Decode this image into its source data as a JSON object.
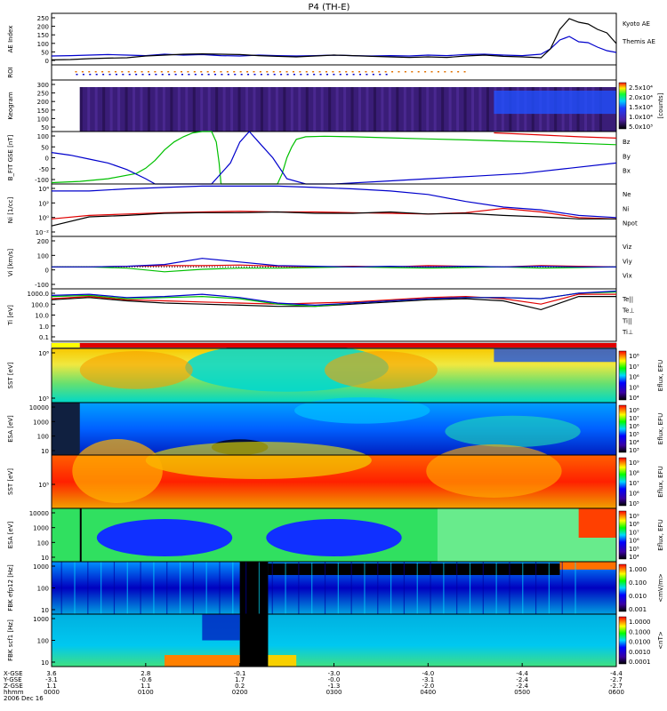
{
  "title": "P4 (TH-E)",
  "colors": {
    "blue": "#0000cc",
    "black": "#000000",
    "red": "#e00000",
    "green": "#00c000",
    "orange": "#e07000"
  },
  "chart_data": [
    {
      "id": "ae",
      "type": "line",
      "ylabel": "AE Index",
      "yticks": [
        "250",
        "200",
        "150",
        "100",
        "50",
        "0"
      ],
      "ylim": [
        -30,
        260
      ],
      "series": [
        {
          "name": "Kyoto AE",
          "color": "blue",
          "x": [
            0,
            20,
            40,
            60,
            80,
            100,
            120,
            140,
            160,
            180,
            200,
            220,
            240,
            260,
            280,
            300,
            320,
            340,
            360,
            380,
            400,
            420,
            440,
            460,
            480,
            500,
            520,
            530,
            540,
            550,
            560,
            570,
            580,
            590,
            600
          ],
          "y": [
            20,
            22,
            25,
            28,
            25,
            22,
            30,
            25,
            28,
            22,
            20,
            25,
            22,
            20,
            22,
            25,
            22,
            20,
            22,
            20,
            25,
            22,
            28,
            30,
            25,
            22,
            30,
            60,
            110,
            130,
            100,
            95,
            70,
            50,
            40
          ]
        },
        {
          "name": "Themis AE",
          "color": "black",
          "x": [
            0,
            20,
            40,
            60,
            80,
            100,
            120,
            140,
            160,
            180,
            200,
            220,
            240,
            260,
            280,
            300,
            320,
            340,
            360,
            380,
            400,
            420,
            440,
            460,
            480,
            500,
            520,
            530,
            540,
            550,
            560,
            570,
            580,
            590,
            600
          ],
          "y": [
            -2,
            0,
            5,
            8,
            10,
            20,
            25,
            30,
            32,
            30,
            28,
            22,
            18,
            15,
            20,
            25,
            22,
            18,
            15,
            12,
            15,
            12,
            20,
            25,
            18,
            15,
            10,
            60,
            170,
            230,
            210,
            200,
            170,
            150,
            90
          ]
        }
      ]
    },
    {
      "id": "roi",
      "type": "scatter",
      "ylabel": "ROI",
      "yticks": []
    },
    {
      "id": "keogram",
      "type": "heatmap",
      "ylabel": "Keogram",
      "yticks": [
        "300",
        "250",
        "200",
        "150",
        "100",
        "50"
      ],
      "colorbar_ticks": [
        "2.5x10⁴",
        "2.0x10⁴",
        "1.5x10⁴",
        "1.0x10⁴",
        "5.0x10³"
      ],
      "colorbar_label": "[counts]"
    },
    {
      "id": "bfield",
      "type": "line",
      "ylabel": "B_FIT GSE [nT]",
      "yticks": [
        "100",
        "50",
        "0",
        "-50",
        "-100"
      ],
      "ylim": [
        -100,
        100
      ],
      "series": [
        {
          "name": "Bz",
          "color": "red",
          "x": [
            470,
            500,
            530,
            560,
            600
          ],
          "y": [
            95,
            90,
            85,
            80,
            75
          ]
        },
        {
          "name": "By",
          "color": "green",
          "x": [
            0,
            30,
            60,
            90,
            100,
            110,
            120,
            130,
            140,
            150,
            160,
            170,
            175,
            178,
            180,
            200,
            220,
            240,
            245,
            250,
            255,
            260,
            270,
            290,
            320,
            360,
            400,
            440,
            480,
            520,
            560,
            600
          ],
          "y": [
            -95,
            -90,
            -80,
            -60,
            -40,
            -10,
            30,
            60,
            80,
            95,
            100,
            100,
            60,
            -20,
            -100,
            -100,
            -100,
            -100,
            -60,
            0,
            40,
            70,
            80,
            82,
            80,
            76,
            72,
            68,
            64,
            60,
            55,
            50
          ]
        },
        {
          "name": "Bx",
          "color": "blue",
          "x": [
            0,
            20,
            40,
            60,
            80,
            100,
            110,
            140,
            170,
            190,
            200,
            210,
            220,
            235,
            250,
            270,
            300,
            350,
            400,
            450,
            500,
            550,
            600
          ],
          "y": [
            20,
            10,
            -5,
            -20,
            -45,
            -80,
            -100,
            -100,
            -100,
            -20,
            60,
            100,
            60,
            0,
            -80,
            -100,
            -100,
            -90,
            -80,
            -70,
            -60,
            -40,
            -20
          ]
        }
      ]
    },
    {
      "id": "density",
      "type": "line",
      "ylabel": "Ni [1/cc]",
      "yticks": [
        "10⁴",
        "10²",
        "10⁰",
        "10⁻²"
      ],
      "ylim": [
        -3,
        4.5
      ],
      "series": [
        {
          "name": "Ne",
          "color": "red",
          "x": [
            0,
            40,
            80,
            120,
            160,
            200,
            240,
            280,
            320,
            360,
            400,
            440,
            480,
            520,
            560,
            600
          ],
          "y": [
            -0.5,
            0,
            0.2,
            0.4,
            0.5,
            0.6,
            0.5,
            0.5,
            0.4,
            0.3,
            0.2,
            0.4,
            1,
            0.5,
            -0.3,
            -0.5
          ]
        },
        {
          "name": "Ni",
          "color": "black",
          "x": [
            0,
            40,
            80,
            120,
            160,
            200,
            240,
            280,
            320,
            360,
            400,
            440,
            480,
            520,
            560,
            600
          ],
          "y": [
            -1.5,
            -0.2,
            0,
            0.3,
            0.4,
            0.4,
            0.5,
            0.3,
            0.3,
            0.5,
            0.2,
            0.3,
            0,
            -0.2,
            -0.5,
            -0.5
          ]
        },
        {
          "name": "Npot",
          "color": "blue",
          "x": [
            0,
            40,
            80,
            120,
            160,
            200,
            240,
            280,
            320,
            360,
            400,
            440,
            480,
            520,
            560,
            600
          ],
          "y": [
            3.5,
            3.5,
            3.8,
            4,
            4.2,
            4.2,
            4.2,
            4,
            3.8,
            3.5,
            3,
            2,
            1.2,
            0.8,
            0,
            -0.3
          ]
        }
      ]
    },
    {
      "id": "velocity",
      "type": "line",
      "ylabel": "Vi [km/s]",
      "yticks": [
        "200",
        "100",
        "0",
        "-100"
      ],
      "ylim": [
        -180,
        250
      ],
      "series": [
        {
          "name": "Viz",
          "color": "red",
          "x": [
            0,
            40,
            80,
            120,
            160,
            200,
            240,
            280,
            320,
            360,
            400,
            440,
            480,
            520,
            560,
            600
          ],
          "y": [
            0,
            0,
            5,
            10,
            10,
            15,
            5,
            0,
            5,
            0,
            10,
            5,
            0,
            10,
            5,
            0
          ]
        },
        {
          "name": "Viy",
          "color": "green",
          "x": [
            0,
            40,
            80,
            120,
            160,
            200,
            240,
            280,
            320,
            360,
            400,
            440,
            480,
            520,
            560,
            600
          ],
          "y": [
            0,
            0,
            -10,
            -40,
            -20,
            -10,
            -10,
            -5,
            0,
            -5,
            -10,
            -5,
            0,
            -10,
            -5,
            0
          ]
        },
        {
          "name": "Vix",
          "color": "blue",
          "x": [
            0,
            40,
            80,
            120,
            160,
            200,
            240,
            280,
            320,
            360,
            400,
            440,
            480,
            520,
            560,
            600
          ],
          "y": [
            0,
            0,
            5,
            20,
            70,
            40,
            10,
            5,
            0,
            5,
            0,
            5,
            0,
            5,
            0,
            0
          ]
        }
      ]
    },
    {
      "id": "temperature",
      "type": "line",
      "ylabel": "Ti [eV]",
      "yticks": [
        "1000.0",
        "100.0",
        "10.0",
        "1.0",
        "0.1"
      ],
      "ylim": [
        -1.2,
        3.6
      ],
      "series": [
        {
          "name": "Te||",
          "color": "black",
          "x": [
            0,
            40,
            80,
            120,
            160,
            200,
            240,
            280,
            320,
            360,
            400,
            440,
            480,
            520,
            560,
            600
          ],
          "y": [
            2.6,
            2.8,
            2.5,
            2.3,
            2.2,
            2.1,
            2.0,
            2.0,
            2.2,
            2.4,
            2.6,
            2.7,
            2.5,
            1.7,
            2.9,
            2.9
          ]
        },
        {
          "name": "Te⊥",
          "color": "red",
          "x": [
            0,
            40,
            80,
            120,
            160,
            200,
            240,
            280,
            320,
            360,
            400,
            440,
            480,
            520,
            560,
            600
          ],
          "y": [
            2.7,
            2.9,
            2.6,
            2.5,
            2.4,
            2.3,
            2.2,
            2.3,
            2.4,
            2.6,
            2.8,
            2.9,
            2.7,
            2.2,
            3.1,
            3.1
          ]
        },
        {
          "name": "Ti||",
          "color": "green",
          "x": [
            0,
            40,
            80,
            120,
            160,
            200,
            240,
            280,
            320,
            360,
            400,
            440,
            480,
            520,
            560,
            600
          ],
          "y": [
            2.9,
            3.0,
            2.7,
            2.8,
            2.9,
            2.7,
            2.2,
            2.0,
            2.3,
            2.5,
            2.7,
            2.8,
            2.8,
            2.7,
            3.2,
            3.3
          ]
        },
        {
          "name": "Ti⊥",
          "color": "blue",
          "x": [
            0,
            40,
            80,
            120,
            160,
            200,
            240,
            280,
            320,
            360,
            400,
            440,
            480,
            520,
            560,
            600
          ],
          "y": [
            3.0,
            3.1,
            2.8,
            2.9,
            3.1,
            2.8,
            2.3,
            2.1,
            2.3,
            2.5,
            2.7,
            2.8,
            2.8,
            2.7,
            3.2,
            3.4
          ]
        }
      ]
    },
    {
      "id": "sst-ion",
      "type": "heatmap",
      "ylabel": "SST [eV]",
      "yticks": [
        "10⁶",
        "10⁵"
      ],
      "colorbar_ticks": [
        "10⁸",
        "10⁷",
        "10⁶",
        "10⁵",
        "10⁴"
      ],
      "colorbar_label": "Eflux, EFU"
    },
    {
      "id": "esa-ion",
      "type": "heatmap",
      "ylabel": "ESA [eV]",
      "yticks": [
        "10000",
        "1000",
        "100",
        "10"
      ],
      "colorbar_ticks": [
        "10⁸",
        "10⁷",
        "10⁶",
        "10⁵",
        "10⁴",
        "10³"
      ],
      "colorbar_label": "Eflux, EFU"
    },
    {
      "id": "sst-electron",
      "type": "heatmap",
      "ylabel": "SST [eV]",
      "yticks": [
        "10⁵"
      ],
      "colorbar_ticks": [
        "10⁹",
        "10⁸",
        "10⁷",
        "10⁶",
        "10⁵"
      ],
      "colorbar_label": "Eflux, EFU"
    },
    {
      "id": "esa-electron",
      "type": "heatmap",
      "ylabel": "ESA [eV]",
      "yticks": [
        "10000",
        "1000",
        "100",
        "10"
      ],
      "colorbar_ticks": [
        "10⁹",
        "10⁸",
        "10⁷",
        "10⁶",
        "10⁵",
        "10⁴"
      ],
      "colorbar_label": "Eflux, EFU"
    },
    {
      "id": "fbk-e12",
      "type": "heatmap",
      "ylabel": "FBK efp12 [Hz]",
      "yticks": [
        "1000",
        "100",
        "10"
      ],
      "colorbar_ticks": [
        "1.000",
        "0.100",
        "0.010",
        "0.001"
      ],
      "colorbar_label": "<mV/m>"
    },
    {
      "id": "fbk-scm1",
      "type": "heatmap",
      "ylabel": "FBK scf1 [Hz]",
      "yticks": [
        "1000",
        "100",
        "10"
      ],
      "colorbar_ticks": [
        "1.0000",
        "0.1000",
        "0.0100",
        "0.0010",
        "0.0001"
      ],
      "colorbar_label": "<nT>"
    }
  ],
  "bottom_axis": {
    "row_labels": [
      "X-GSE",
      "Y-GSE",
      "Z-GSE",
      "hhmm",
      "2006 Dec 16"
    ],
    "columns": [
      {
        "x": "3.6",
        "y": "-3.1",
        "z": "1.1",
        "t": "0000"
      },
      {
        "x": "2.8",
        "y": "-0.6",
        "z": "1.1",
        "t": "0100"
      },
      {
        "x": "-0.1",
        "y": "1.7",
        "z": "0.2",
        "t": "0200"
      },
      {
        "x": "-3.0",
        "y": "-0.0",
        "z": "-1.3",
        "t": "0300"
      },
      {
        "x": "-4.0",
        "y": "-3.1",
        "z": "-2.0",
        "t": "0400"
      },
      {
        "x": "-4.4",
        "y": "-2.4",
        "z": "-2.4",
        "t": "0500"
      },
      {
        "x": "-4.4",
        "y": "-2.7",
        "z": "-2.7",
        "t": "0600"
      }
    ]
  }
}
